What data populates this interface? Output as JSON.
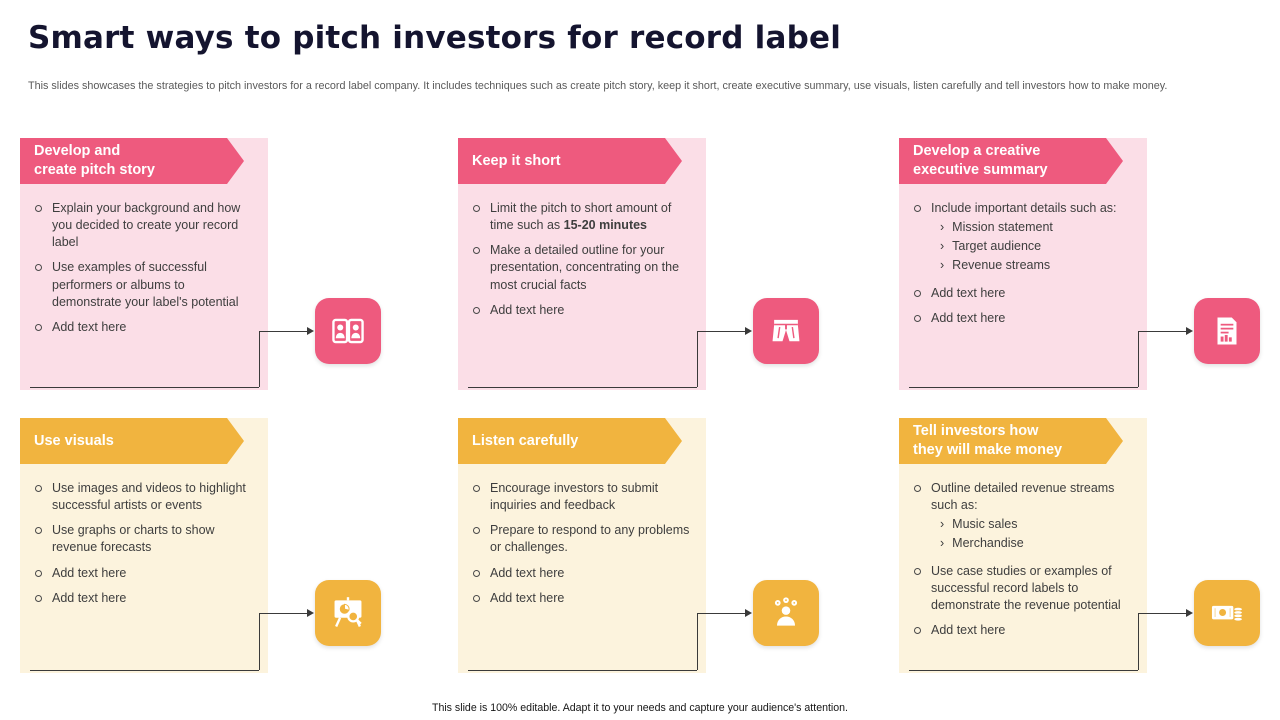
{
  "slide": {
    "title": "Smart ways to pitch investors for record label",
    "subtitle": "This slides showcases the strategies to pitch investors for a record label company. It includes techniques such as create pitch story, keep it short, create executive summary, use visuals, listen carefully and tell investors how to make money.",
    "footer": "This slide is 100% editable. Adapt it to your needs and capture your audience's attention."
  },
  "colors": {
    "pink": "#EE5A7E",
    "pink_panel": "#FBDEE7",
    "yellow": "#F1B43F",
    "yellow_panel": "#FCF3DD",
    "title_color": "#14142F",
    "body_text": "#3E3E3E"
  },
  "cards": [
    {
      "title": "Develop and\ncreate pitch story",
      "theme": "pink",
      "icon": "performers-icon",
      "bullets": [
        {
          "parts": [
            {
              "t": "Explain your background and how you decided to create your record label"
            }
          ]
        },
        {
          "parts": [
            {
              "t": "Use examples of successful performers or albums to demonstrate your label's potential"
            }
          ]
        },
        {
          "parts": [
            {
              "t": "Add text here"
            }
          ]
        }
      ]
    },
    {
      "title": "Keep it short",
      "theme": "pink",
      "icon": "shorts-icon",
      "bullets": [
        {
          "parts": [
            {
              "t": "Limit the pitch to short amount of time such as "
            },
            {
              "t": "15-20 minutes",
              "b": true
            }
          ]
        },
        {
          "parts": [
            {
              "t": "Make a detailed outline for your presentation, concentrating on the most crucial facts"
            }
          ]
        },
        {
          "parts": [
            {
              "t": "Add text here"
            }
          ]
        }
      ]
    },
    {
      "title": "Develop a creative\nexecutive summary",
      "theme": "pink",
      "icon": "summary-document-icon",
      "bullets": [
        {
          "parts": [
            {
              "t": "Include important details such as:"
            }
          ],
          "subs": [
            "Mission statement",
            "Target audience",
            "Revenue streams"
          ]
        },
        {
          "parts": [
            {
              "t": "Add text here"
            }
          ]
        },
        {
          "parts": [
            {
              "t": "Add text here"
            }
          ]
        }
      ]
    },
    {
      "title": "Use visuals",
      "theme": "yellow",
      "icon": "presentation-chart-icon",
      "bullets": [
        {
          "parts": [
            {
              "t": "Use images and videos to highlight successful artists or events"
            }
          ]
        },
        {
          "parts": [
            {
              "t": "Use graphs or charts to show revenue forecasts"
            }
          ]
        },
        {
          "parts": [
            {
              "t": "Add text here"
            }
          ]
        },
        {
          "parts": [
            {
              "t": "Add text here"
            }
          ]
        }
      ]
    },
    {
      "title": "Listen carefully",
      "theme": "yellow",
      "icon": "feedback-icon",
      "bullets": [
        {
          "parts": [
            {
              "t": "Encourage investors to submit inquiries and feedback"
            }
          ]
        },
        {
          "parts": [
            {
              "t": "Prepare to respond to any problems or challenges."
            }
          ]
        },
        {
          "parts": [
            {
              "t": "Add text here"
            }
          ]
        },
        {
          "parts": [
            {
              "t": "Add text here"
            }
          ]
        }
      ]
    },
    {
      "title": "Tell investors how\nthey will make money",
      "theme": "yellow",
      "icon": "money-icon",
      "bullets": [
        {
          "parts": [
            {
              "t": "Outline detailed revenue streams such as:"
            }
          ],
          "subs": [
            "Music sales",
            "Merchandise"
          ]
        },
        {
          "parts": [
            {
              "t": "Use case studies or examples of successful record labels to demonstrate the revenue potential"
            }
          ]
        },
        {
          "parts": [
            {
              "t": "Add text here"
            }
          ]
        }
      ]
    }
  ]
}
